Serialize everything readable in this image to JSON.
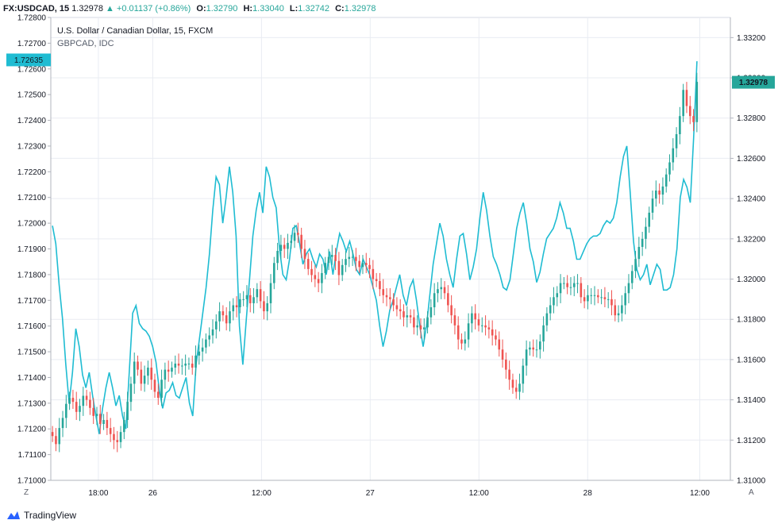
{
  "header": {
    "symbol": "FX:USDCAD, 15",
    "last": "1.32978",
    "change": "▲ +0.01137 (+0.86%)",
    "o_label": "O:",
    "o": "1.32790",
    "h_label": "H:",
    "h": "1.33040",
    "l_label": "L:",
    "l": "1.32742",
    "c_label": "C:",
    "c": "1.32978"
  },
  "legend": {
    "main": "U.S. Dollar / Canadian Dollar, 15, FXCM",
    "compare": "GBPCAD, IDC"
  },
  "controls": {
    "left": "Z",
    "right": "A"
  },
  "branding": {
    "logo": "tradingview-logo-icon",
    "text": "TradingView"
  },
  "colors": {
    "up": "#26a69a",
    "down": "#ef5350",
    "compare": "#1fbcd2",
    "grid": "#e9ecf2"
  },
  "chart_data": {
    "type": "candlestick",
    "left_axis": {
      "series": "GBPCAD, IDC",
      "range": [
        1.71,
        1.728
      ],
      "ticks": [
        "1.71000",
        "1.71100",
        "1.71200",
        "1.71300",
        "1.71400",
        "1.71500",
        "1.71600",
        "1.71700",
        "1.71800",
        "1.71900",
        "1.72000",
        "1.72100",
        "1.72200",
        "1.72300",
        "1.72400",
        "1.72500",
        "1.72600",
        "1.72700",
        "1.72800"
      ],
      "last_label": "1.72635"
    },
    "right_axis": {
      "series": "FX:USDCAD, 15",
      "range": [
        1.31,
        1.333
      ],
      "ticks": [
        "1.31000",
        "1.31200",
        "1.31400",
        "1.31600",
        "1.31800",
        "1.32000",
        "1.32200",
        "1.32400",
        "1.32600",
        "1.32800",
        "1.33000",
        "1.33200"
      ],
      "last_label": "1.32978"
    },
    "x_ticks": [
      {
        "label": "18:00",
        "t": 0.07
      },
      {
        "label": "26",
        "t": 0.15
      },
      {
        "label": "12:00",
        "t": 0.31
      },
      {
        "label": "27",
        "t": 0.47
      },
      {
        "label": "12:00",
        "t": 0.63
      },
      {
        "label": "28",
        "t": 0.79
      },
      {
        "label": "12:00",
        "t": 0.955
      }
    ],
    "usdcad_close": [
      1.3122,
      1.3118,
      1.3126,
      1.3131,
      1.3138,
      1.3141,
      1.3139,
      1.3134,
      1.3137,
      1.3142,
      1.314,
      1.3136,
      1.3132,
      1.3133,
      1.3128,
      1.313,
      1.3126,
      1.3123,
      1.312,
      1.3119,
      1.3124,
      1.313,
      1.3139,
      1.3148,
      1.3159,
      1.3155,
      1.3148,
      1.3152,
      1.3156,
      1.315,
      1.3144,
      1.3141,
      1.315,
      1.3155,
      1.3154,
      1.3156,
      1.3158,
      1.3157,
      1.3157,
      1.3158,
      1.3158,
      1.3156,
      1.3162,
      1.3164,
      1.3166,
      1.317,
      1.3172,
      1.3175,
      1.3179,
      1.3184,
      1.3182,
      1.3178,
      1.3184,
      1.3187,
      1.3186,
      1.319,
      1.319,
      1.3192,
      1.3188,
      1.3191,
      1.3195,
      1.3189,
      1.3184,
      1.3188,
      1.3198,
      1.3208,
      1.3214,
      1.3217,
      1.3215,
      1.3218,
      1.3219,
      1.3223,
      1.3222,
      1.3215,
      1.321,
      1.3205,
      1.3202,
      1.32,
      1.3198,
      1.3203,
      1.3208,
      1.3211,
      1.3212,
      1.3209,
      1.3202,
      1.3207,
      1.321,
      1.3211,
      1.3211,
      1.3209,
      1.3206,
      1.3208,
      1.3207,
      1.3205,
      1.32,
      1.3199,
      1.3195,
      1.3192,
      1.3191,
      1.319,
      1.3187,
      1.3185,
      1.3184,
      1.3181,
      1.3182,
      1.3181,
      1.3176,
      1.3177,
      1.3175,
      1.3176,
      1.3181,
      1.3186,
      1.3193,
      1.3195,
      1.3196,
      1.3193,
      1.3187,
      1.3182,
      1.3177,
      1.317,
      1.3168,
      1.317,
      1.3178,
      1.3183,
      1.318,
      1.3177,
      1.3177,
      1.3176,
      1.3175,
      1.3172,
      1.317,
      1.3165,
      1.316,
      1.3155,
      1.315,
      1.3146,
      1.3144,
      1.3148,
      1.3157,
      1.3165,
      1.3166,
      1.3165,
      1.3165,
      1.3169,
      1.3177,
      1.3183,
      1.3187,
      1.3191,
      1.3193,
      1.3198,
      1.3198,
      1.3196,
      1.3196,
      1.3198,
      1.3198,
      1.3191,
      1.3189,
      1.3192,
      1.3192,
      1.3192,
      1.3191,
      1.3191,
      1.319,
      1.319,
      1.3187,
      1.3182,
      1.3183,
      1.3187,
      1.3193,
      1.3198,
      1.3204,
      1.321,
      1.3216,
      1.322,
      1.3226,
      1.3233,
      1.324,
      1.3244,
      1.3242,
      1.3246,
      1.3252,
      1.3258,
      1.3265,
      1.3272,
      1.3281,
      1.3294,
      1.3286,
      1.3281,
      1.3278,
      1.3298
    ],
    "gbpcad_close": [
      1.7199,
      1.7192,
      1.7176,
      1.7163,
      1.7145,
      1.713,
      1.7142,
      1.7159,
      1.7152,
      1.7141,
      1.7136,
      1.7142,
      1.7133,
      1.7125,
      1.7118,
      1.7128,
      1.7136,
      1.7142,
      1.7136,
      1.7129,
      1.7133,
      1.7125,
      1.712,
      1.7142,
      1.7165,
      1.7168,
      1.7161,
      1.7159,
      1.7158,
      1.7156,
      1.7152,
      1.7146,
      1.7135,
      1.7128,
      1.7134,
      1.7135,
      1.7138,
      1.7133,
      1.7132,
      1.7136,
      1.714,
      1.713,
      1.7125,
      1.7145,
      1.7155,
      1.7165,
      1.7175,
      1.7188,
      1.7205,
      1.7218,
      1.7215,
      1.72,
      1.721,
      1.7222,
      1.7212,
      1.7195,
      1.716,
      1.7145,
      1.7162,
      1.7178,
      1.7195,
      1.7205,
      1.7212,
      1.7204,
      1.7222,
      1.7218,
      1.721,
      1.7206,
      1.719,
      1.718,
      1.7178,
      1.7186,
      1.7198,
      1.7199,
      1.7192,
      1.7184,
      1.7188,
      1.719,
      1.7186,
      1.7183,
      1.7188,
      1.7186,
      1.718,
      1.7189,
      1.718,
      1.7189,
      1.7196,
      1.7193,
      1.7189,
      1.7193,
      1.7188,
      1.7182,
      1.718,
      1.7186,
      1.7183,
      1.718,
      1.7175,
      1.717,
      1.716,
      1.7152,
      1.7158,
      1.7166,
      1.717,
      1.7175,
      1.718,
      1.7172,
      1.7168,
      1.7175,
      1.7178,
      1.717,
      1.716,
      1.7152,
      1.716,
      1.7172,
      1.7184,
      1.7192,
      1.72,
      1.7195,
      1.7186,
      1.718,
      1.7175,
      1.7186,
      1.7195,
      1.7196,
      1.7188,
      1.7178,
      1.7183,
      1.719,
      1.7202,
      1.7212,
      1.7205,
      1.7195,
      1.7187,
      1.7184,
      1.718,
      1.7175,
      1.7174,
      1.7178,
      1.7188,
      1.7198,
      1.7204,
      1.7208,
      1.72,
      1.719,
      1.7185,
      1.7177,
      1.7181,
      1.7188,
      1.7194,
      1.7196,
      1.7198,
      1.7202,
      1.7208,
      1.7204,
      1.7198,
      1.7198,
      1.7193,
      1.7186,
      1.7186,
      1.7189,
      1.7192,
      1.7194,
      1.7195,
      1.7195,
      1.7196,
      1.7199,
      1.7201,
      1.72,
      1.7202,
      1.7208,
      1.7218,
      1.7226,
      1.723,
      1.7212,
      1.7193,
      1.7182,
      1.7178,
      1.718,
      1.7184,
      1.7176,
      1.718,
      1.7184,
      1.7182,
      1.7174,
      1.7174,
      1.7175,
      1.718,
      1.719,
      1.721,
      1.7217,
      1.7214,
      1.7208,
      1.7233,
      1.7263
    ]
  }
}
